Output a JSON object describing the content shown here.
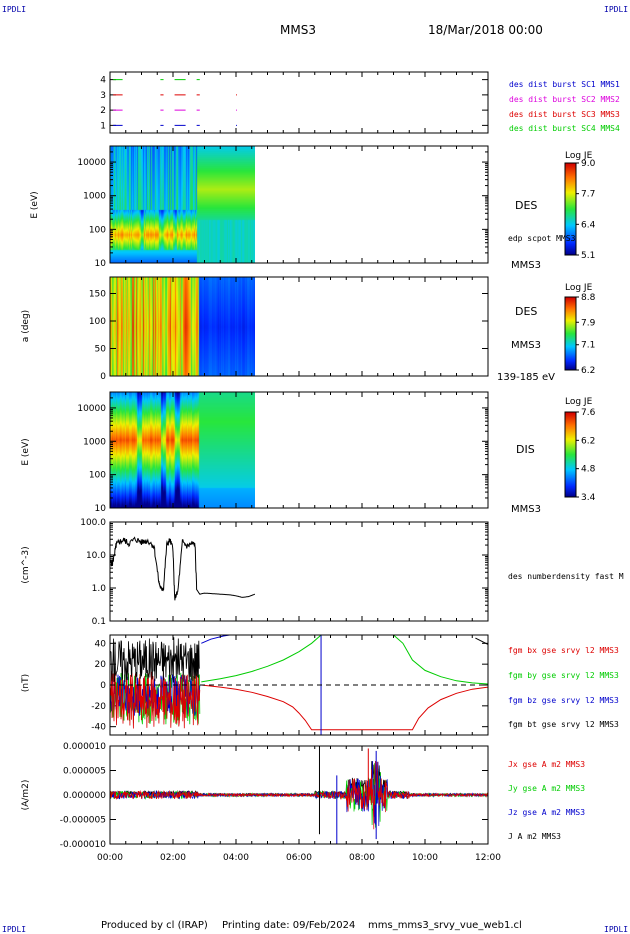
{
  "header": {
    "corner_label_left": "IPDLI",
    "corner_label_right": "IPDLI",
    "mission": "MMS3",
    "date": "18/Mar/2018 00:00"
  },
  "footer": {
    "credit": "Produced by cl (IRAP)",
    "printing_date": "Printing date: 09/Feb/2024",
    "product": "mms_mms3_srvy_vue_web1.cl",
    "corner_label_left": "IPDLI",
    "corner_label_right": "IPDLI"
  },
  "colors": {
    "mms1": "#0000cc",
    "mms2": "#dd00dd",
    "mms3": "#dd0000",
    "mms4": "#00cc00",
    "bx": "#dd0000",
    "by": "#00cc00",
    "bz": "#0000cc",
    "bt": "#000000"
  },
  "chart_data": [
    {
      "type": "line",
      "panel": "burst availability",
      "yticks": [
        "1",
        "2",
        "3",
        "4"
      ],
      "ylim": [
        0.5,
        4.5
      ],
      "series": [
        {
          "name": "des dist burst SC1 MMS1",
          "level": 1,
          "color": "#0000cc",
          "segments": [
            [
              0.1,
              0.4
            ],
            [
              1.6,
              1.7
            ],
            [
              2.05,
              2.4
            ],
            [
              2.75,
              2.85
            ],
            [
              4.0,
              4.02
            ]
          ]
        },
        {
          "name": "des dist burst SC2 MMS2",
          "level": 2,
          "color": "#dd00dd",
          "segments": [
            [
              0.1,
              0.4
            ],
            [
              1.6,
              1.7
            ],
            [
              2.05,
              2.4
            ],
            [
              2.75,
              2.85
            ],
            [
              4.0,
              4.02
            ]
          ]
        },
        {
          "name": "des dist burst SC3 MMS3",
          "level": 3,
          "color": "#dd0000",
          "segments": [
            [
              0.1,
              0.4
            ],
            [
              1.6,
              1.7
            ],
            [
              2.05,
              2.4
            ],
            [
              2.75,
              2.85
            ],
            [
              4.0,
              4.02
            ]
          ]
        },
        {
          "name": "des dist burst SC4 MMS4",
          "level": 4,
          "color": "#00cc00",
          "segments": [
            [
              0.1,
              0.4
            ],
            [
              1.6,
              1.7
            ],
            [
              2.05,
              2.4
            ],
            [
              2.75,
              2.85
            ]
          ]
        }
      ]
    },
    {
      "type": "heatmap",
      "panel": "DES energy spectrogram",
      "ylabel": "E (eV)",
      "yscale": "log",
      "ylim": [
        10,
        30000
      ],
      "yticks": [
        "10",
        "100",
        "1000",
        "10000"
      ],
      "label_right": "DES",
      "label_right_2": "MMS3",
      "overlay_label": "edp scpot MMS3",
      "colorbar": {
        "title": "Log JE",
        "ticks": [
          "5.1",
          "6.4",
          "7.7",
          "9.0"
        ],
        "range": [
          5.1,
          9.0
        ]
      },
      "data_end_hour": 4.6,
      "burst_end_hour": 2.75
    },
    {
      "type": "heatmap",
      "panel": "DES pitch angle",
      "ylabel": "a (deg)",
      "ylim": [
        0,
        180
      ],
      "yticks": [
        "0",
        "50",
        "100",
        "150"
      ],
      "label_right": "DES",
      "label_right_2": "MMS3",
      "label_right_3": "139-185 eV",
      "colorbar": {
        "title": "Log JE",
        "ticks": [
          "6.2",
          "7.1",
          "7.9",
          "8.8"
        ],
        "range": [
          6.2,
          8.8
        ]
      },
      "data_end_hour": 4.6
    },
    {
      "type": "heatmap",
      "panel": "DIS energy spectrogram",
      "ylabel": "E (eV)",
      "yscale": "log",
      "ylim": [
        10,
        30000
      ],
      "yticks": [
        "10",
        "100",
        "1000",
        "10000"
      ],
      "label_right": "DIS",
      "label_right_2": "MMS3",
      "colorbar": {
        "title": "Log JE",
        "ticks": [
          "3.4",
          "4.8",
          "6.2",
          "7.6"
        ],
        "range": [
          3.4,
          7.6
        ]
      },
      "data_end_hour": 4.6
    },
    {
      "type": "line",
      "panel": "electron density",
      "ylabel": "(cm^-3)",
      "yscale": "log",
      "ylim": [
        0.1,
        100
      ],
      "yticks": [
        "0.1",
        "1.0",
        "10.0",
        "100.0"
      ],
      "series": [
        {
          "name": "des numberdensity fast M",
          "color": "#000000",
          "x": [
            0.0,
            0.08,
            0.15,
            0.2,
            0.3,
            0.45,
            0.6,
            0.8,
            1.0,
            1.2,
            1.4,
            1.55,
            1.62,
            1.7,
            1.8,
            1.9,
            2.0,
            2.05,
            2.15,
            2.3,
            2.45,
            2.6,
            2.7,
            2.75,
            2.85,
            3.0,
            3.2,
            3.5,
            3.8,
            4.0,
            4.2,
            4.4,
            4.6
          ],
          "y": [
            6.0,
            5.5,
            12.0,
            20.0,
            25.0,
            28.0,
            22.0,
            30.0,
            24.0,
            27.0,
            18.0,
            1.5,
            0.9,
            1.0,
            20.0,
            28.0,
            15.0,
            0.5,
            0.7,
            25.0,
            18.0,
            22.0,
            20.0,
            0.9,
            0.65,
            0.7,
            0.68,
            0.65,
            0.62,
            0.58,
            0.52,
            0.55,
            0.65
          ]
        }
      ]
    },
    {
      "type": "line",
      "panel": "magnetic field",
      "ylabel": "(nT)",
      "ylim": [
        -48,
        48
      ],
      "yticks": [
        "-40",
        "-20",
        "0",
        "20",
        "40"
      ],
      "series": [
        {
          "name": "fgm bx gse srvy l2 MMS3",
          "color": "#dd0000",
          "x": [
            2.9,
            3.5,
            4.0,
            4.5,
            5.0,
            5.5,
            5.8,
            6.0,
            6.2,
            6.4,
            9.6,
            9.8,
            10.1,
            10.5,
            11.0,
            11.5,
            12.0
          ],
          "y": [
            0,
            -2,
            -4,
            -7,
            -11,
            -16,
            -21,
            -27,
            -34,
            -43,
            -43,
            -32,
            -22,
            -14,
            -8,
            -4,
            -2
          ]
        },
        {
          "name": "fgm by gse srvy l2 MMS3",
          "color": "#00cc00",
          "x": [
            2.9,
            3.5,
            4.0,
            4.5,
            5.0,
            5.5,
            6.0,
            6.4,
            6.7,
            9.0,
            9.3,
            9.6,
            10.0,
            10.5,
            11.0,
            11.5,
            12.0
          ],
          "y": [
            3,
            6,
            9,
            13,
            18,
            24,
            32,
            40,
            48,
            48,
            40,
            24,
            14,
            8,
            4,
            2,
            1
          ]
        },
        {
          "name": "fgm bz gse srvy l2 MMS3",
          "color": "#0000cc",
          "x": [
            2.9,
            3.2,
            3.6,
            3.8
          ],
          "y": [
            40,
            44,
            47,
            48
          ]
        },
        {
          "name": "fgm bt gse srvy l2 MMS3",
          "color": "#000000",
          "x": [
            11.6,
            12.0
          ],
          "y": [
            45,
            39
          ]
        }
      ]
    },
    {
      "type": "line",
      "panel": "current density",
      "ylabel": "(A/m2)",
      "ylim": [
        -1e-05,
        1e-05
      ],
      "yticks": [
        "-0.000010",
        "-0.000005",
        "0.000000",
        "0.000005",
        "0.000010"
      ],
      "xlabel": "",
      "xlim": [
        0,
        12
      ],
      "xticks": [
        "00:00",
        "02:00",
        "04:00",
        "06:00",
        "08:00",
        "10:00",
        "12:00"
      ],
      "series": [
        {
          "name": "Jx gse A m2 MMS3",
          "color": "#dd0000"
        },
        {
          "name": "Jy gse A m2 MMS3",
          "color": "#00cc00"
        },
        {
          "name": "Jz gse A m2 MMS3",
          "color": "#0000cc"
        },
        {
          "name": "J A m2 MMS3",
          "color": "#000000"
        }
      ]
    }
  ]
}
